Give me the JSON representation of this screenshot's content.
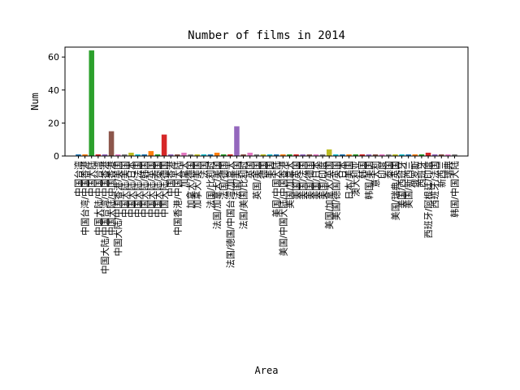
{
  "chart_data": {
    "type": "bar",
    "title": "Number of films in 2014",
    "xlabel": "Area",
    "ylabel": "Num",
    "ylim": [
      0,
      66
    ],
    "yticks": [
      0,
      20,
      40,
      60
    ],
    "grid": false,
    "categories": [
      "中国台湾",
      "中国台湾/中国香港",
      "中国大陆",
      "中国大陆/中国台湾",
      "中国大陆/中国台湾/中国香港",
      "中国大陆/中国香港",
      "中国大陆/中国香港/美国",
      "中国大陆/美国",
      "中国大陆/日本",
      "中国大陆/法国",
      "中国大陆/韩国",
      "中国大陆/英国",
      "中国大陆/泰国",
      "中国大陆/德国",
      "中国香港",
      "中国香港/中国大陆",
      "加拿大",
      "加拿大/德国",
      "加拿大/美国",
      "法国",
      "法国/比利时",
      "法国/加拿大/美国",
      "法国/德国",
      "法国/德国/中国台湾/加拿大",
      "法国/美国",
      "法国/美国/比利时",
      "英国",
      "英国/美国",
      "德国",
      "美国",
      "美国/中国大陆",
      "美国/中国大陆/中国香港",
      "美国/加拿大",
      "美国/英国",
      "美国/法国",
      "美国/德国",
      "美国/日本",
      "美国/印度",
      "美国/加拿大/英国",
      "美国/德国/英国",
      "日本",
      "日本/美国",
      "澳大利亚",
      "韩国",
      "韩国/美国",
      "意大利",
      "印度",
      "泰国",
      "美国/瑞典/英国",
      "美国/西班牙",
      "美国/新西兰",
      "俄罗斯",
      "西班牙",
      "西班牙/阿根廷/印度",
      "西班牙/法国",
      "新西兰",
      "瑞典",
      "韩国/中国大陆"
    ],
    "values": [
      1,
      1,
      64,
      1,
      1,
      15,
      1,
      1,
      2,
      1,
      1,
      3,
      1,
      13,
      1,
      1,
      2,
      1,
      1,
      1,
      1,
      2,
      1,
      1,
      18,
      1,
      2,
      1,
      1,
      1,
      1,
      1,
      1,
      1,
      1,
      1,
      1,
      1,
      4,
      1,
      1,
      1,
      1,
      1,
      1,
      1,
      1,
      1,
      1,
      1,
      1,
      1,
      1,
      2,
      1,
      1,
      1,
      1
    ],
    "colors": [
      "#1f77b4",
      "#ff7f0e",
      "#2ca02c",
      "#d62728",
      "#9467bd",
      "#8c564b",
      "#e377c2",
      "#7f7f7f",
      "#bcbd22",
      "#17becf"
    ]
  }
}
